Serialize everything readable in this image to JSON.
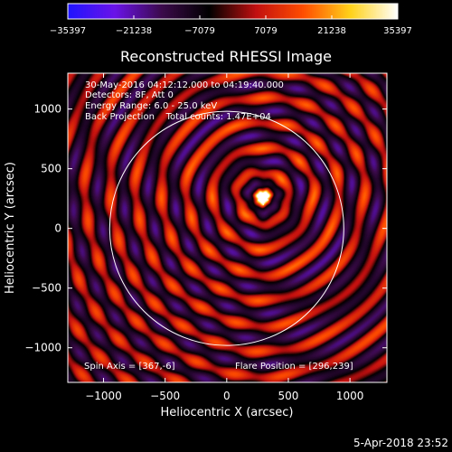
{
  "colorbar": {
    "ticks": [
      "-35397",
      "-21238",
      "-7079",
      "7079",
      "21238",
      "35397"
    ],
    "min": -35397,
    "max": 35397,
    "colors": [
      "#1f14ff",
      "#6a13e8",
      "#3b0a4a",
      "#000000",
      "#c21010",
      "#ff4d00",
      "#ffd21a",
      "#ffffff"
    ]
  },
  "chart_data": {
    "type": "heatmap",
    "title": "Reconstructed RHESSI Image",
    "xlabel": "Heliocentric X (arcsec)",
    "ylabel": "Heliocentric Y (arcsec)",
    "xlim": [
      -1290,
      1300
    ],
    "ylim": [
      -1290,
      1300
    ],
    "xticks": [
      -1000,
      -500,
      0,
      500,
      1000
    ],
    "xtick_labels": [
      "−1000",
      "−500",
      "0",
      "500",
      "1000"
    ],
    "yticks": [
      1000,
      500,
      0,
      -500,
      -1000
    ],
    "ytick_labels": [
      "1000",
      "500",
      "0",
      "−500",
      "−1000"
    ],
    "info_lines": [
      "30-May-2016 04:12:12.000 to 04:19:40.000",
      "Detectors: 8F, Att 0",
      "Energy Range: 6.0 - 25.0 keV",
      "Back Projection    Total counts: 1.47E+04"
    ],
    "spin_axis": "Spin Axis = [367,-6]",
    "flare_position_label": "Flare Position = [296,239]",
    "flare_position": [
      296,
      239
    ],
    "source_peak": [
      290,
      265
    ],
    "spin_axis_center": [
      367,
      -6
    ],
    "solar_disk_radius": 950
  },
  "footer": {
    "timestamp": "5-Apr-2018 23:52"
  }
}
